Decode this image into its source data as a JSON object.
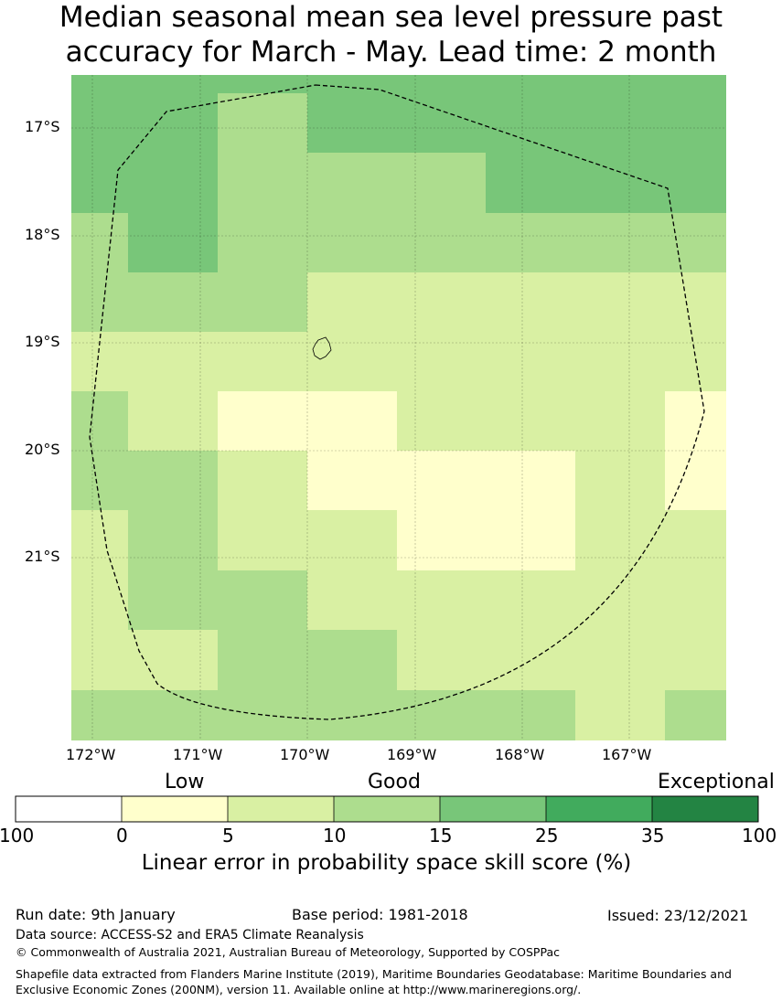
{
  "title": {
    "line1": "Median seasonal mean sea level pressure past",
    "line2": "accuracy for March - May. Lead time: 2 month"
  },
  "map": {
    "lat_labels": [
      "17°S",
      "18°S",
      "19°S",
      "20°S",
      "21°S"
    ],
    "lon_labels": [
      "172°W",
      "171°W",
      "170°W",
      "169°W",
      "168°W",
      "167°W"
    ],
    "eez_boundary": "dashed",
    "island": "Niue"
  },
  "legend": {
    "categories": [
      "Low",
      "Good",
      "Exceptional"
    ],
    "tick_labels": [
      "100",
      "0",
      "5",
      "10",
      "15",
      "25",
      "35",
      "100"
    ],
    "colors": [
      "#ffffff",
      "#ffffcc",
      "#d9f0a3",
      "#addd8e",
      "#78c679",
      "#41ab5d",
      "#238443"
    ],
    "label": "Linear error in probability space skill score (%)"
  },
  "footer": {
    "run_date": "Run date: 9th January",
    "base_period": "Base period: 1981-2018",
    "issued": "Issued: 23/12/2021",
    "data_source": "Data source: ACCESS-S2 and ERA5 Climate Reanalysis",
    "copyright": "© Commonwealth of Australia 2021, Australian Bureau of Meteorology, Supported by COSPPac",
    "shapefile": "Shapefile data extracted from Flanders Marine Institute (2019), Maritime Boundaries Geodatabase: Maritime Boundaries and Exclusive Economic Zones (200NM), version 11. Available online at http://www.marineregions.org/."
  }
}
